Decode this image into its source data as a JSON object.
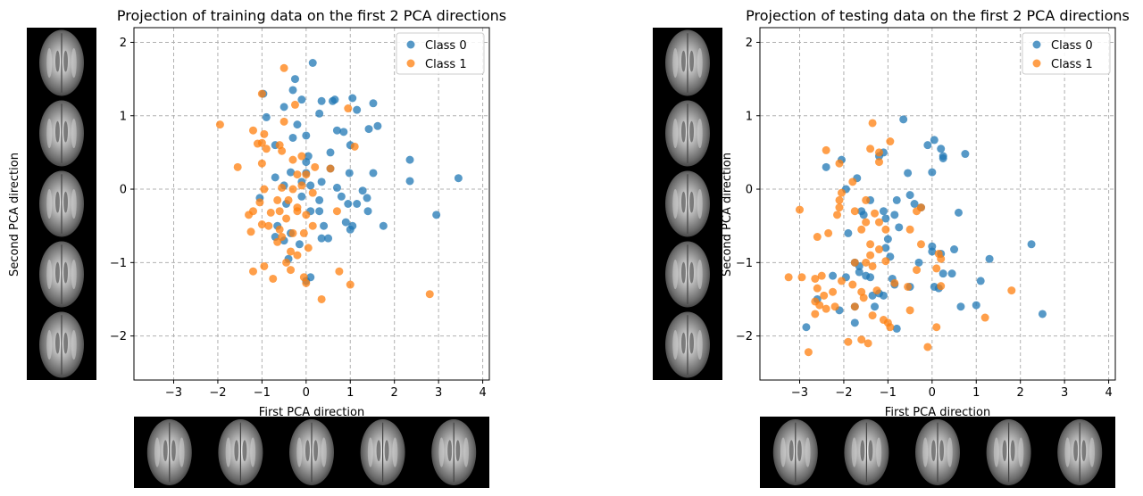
{
  "chart_data": [
    {
      "type": "scatter",
      "title": "Projection of training data on the first 2 PCA directions",
      "xlabel": "First PCA direction",
      "ylabel": "Second PCA direction",
      "xlim": [
        -3.9,
        4.15
      ],
      "ylim": [
        -2.6,
        2.2
      ],
      "xticks": [
        -3,
        -2,
        -1,
        0,
        1,
        2,
        3,
        4
      ],
      "yticks": [
        -2,
        -1,
        0,
        1,
        2
      ],
      "grid": true,
      "legend": "top-right",
      "series": [
        {
          "name": "Class 0",
          "color": "#1f77b4",
          "points": [
            [
              0.15,
              1.72
            ],
            [
              -0.25,
              1.5
            ],
            [
              -0.97,
              1.3
            ],
            [
              -0.5,
              1.12
            ],
            [
              -0.3,
              1.35
            ],
            [
              -0.1,
              1.22
            ],
            [
              0.35,
              1.2
            ],
            [
              0.6,
              1.2
            ],
            [
              0.65,
              1.22
            ],
            [
              1.05,
              1.24
            ],
            [
              1.52,
              1.17
            ],
            [
              1.15,
              1.08
            ],
            [
              0.3,
              1.03
            ],
            [
              -0.9,
              0.98
            ],
            [
              1.62,
              0.86
            ],
            [
              1.42,
              0.82
            ],
            [
              -0.2,
              0.88
            ],
            [
              0.0,
              0.73
            ],
            [
              0.7,
              0.8
            ],
            [
              0.85,
              0.78
            ],
            [
              1.0,
              0.6
            ],
            [
              -0.7,
              0.6
            ],
            [
              -0.3,
              0.7
            ],
            [
              0.55,
              0.5
            ],
            [
              0.05,
              0.45
            ],
            [
              0.0,
              0.37
            ],
            [
              2.35,
              0.4
            ],
            [
              3.45,
              0.15
            ],
            [
              2.35,
              0.11
            ],
            [
              1.52,
              0.22
            ],
            [
              0.98,
              0.22
            ],
            [
              0.55,
              0.28
            ],
            [
              0.0,
              0.22
            ],
            [
              -0.35,
              0.23
            ],
            [
              -0.1,
              0.1
            ],
            [
              -0.5,
              0.05
            ],
            [
              -0.7,
              0.16
            ],
            [
              0.1,
              0.05
            ],
            [
              0.35,
              0.1
            ],
            [
              0.7,
              0.02
            ],
            [
              0.8,
              -0.1
            ],
            [
              1.28,
              -0.02
            ],
            [
              1.38,
              -0.12
            ],
            [
              1.15,
              -0.2
            ],
            [
              0.95,
              -0.2
            ],
            [
              0.3,
              -0.15
            ],
            [
              -0.1,
              -0.1
            ],
            [
              -1.05,
              -0.12
            ],
            [
              -0.45,
              -0.2
            ],
            [
              0.1,
              -0.3
            ],
            [
              0.3,
              -0.3
            ],
            [
              1.4,
              -0.3
            ],
            [
              0.9,
              -0.45
            ],
            [
              2.95,
              -0.35
            ],
            [
              1.75,
              -0.5
            ],
            [
              1.05,
              -0.5
            ],
            [
              -0.65,
              -0.5
            ],
            [
              0.4,
              -0.5
            ],
            [
              1.0,
              -0.55
            ],
            [
              -0.35,
              -0.6
            ],
            [
              -0.5,
              -0.7
            ],
            [
              0.35,
              -0.67
            ],
            [
              0.5,
              -0.67
            ],
            [
              -0.7,
              -0.65
            ],
            [
              -0.4,
              -0.95
            ],
            [
              -0.15,
              -0.75
            ],
            [
              0.1,
              -1.2
            ],
            [
              0.0,
              -1.25
            ]
          ]
        },
        {
          "name": "Class 1",
          "color": "#ff7f0e",
          "points": [
            [
              -0.5,
              1.65
            ],
            [
              -1.0,
              1.3
            ],
            [
              -0.25,
              1.15
            ],
            [
              0.95,
              1.1
            ],
            [
              -1.95,
              0.88
            ],
            [
              -0.5,
              0.92
            ],
            [
              -1.2,
              0.8
            ],
            [
              -0.95,
              0.75
            ],
            [
              -1.0,
              0.63
            ],
            [
              -1.1,
              0.62
            ],
            [
              -0.6,
              0.6
            ],
            [
              -0.9,
              0.55
            ],
            [
              -0.55,
              0.52
            ],
            [
              1.1,
              0.58
            ],
            [
              -0.1,
              0.45
            ],
            [
              -1.0,
              0.35
            ],
            [
              -1.55,
              0.3
            ],
            [
              -0.3,
              0.4
            ],
            [
              0.2,
              0.3
            ],
            [
              0.55,
              0.28
            ],
            [
              0.0,
              0.2
            ],
            [
              -0.2,
              0.2
            ],
            [
              -0.1,
              0.05
            ],
            [
              -0.55,
              0.02
            ],
            [
              -0.3,
              0.0
            ],
            [
              0.15,
              -0.05
            ],
            [
              -0.95,
              0.0
            ],
            [
              -1.05,
              -0.18
            ],
            [
              -0.65,
              -0.15
            ],
            [
              -0.4,
              -0.15
            ],
            [
              -0.2,
              -0.25
            ],
            [
              -0.6,
              -0.3
            ],
            [
              -1.2,
              -0.3
            ],
            [
              -0.8,
              -0.32
            ],
            [
              -1.3,
              -0.35
            ],
            [
              0.7,
              -0.3
            ],
            [
              -0.2,
              -0.3
            ],
            [
              0.0,
              -0.35
            ],
            [
              -0.45,
              -0.4
            ],
            [
              -1.0,
              -0.48
            ],
            [
              -0.85,
              -0.5
            ],
            [
              -0.6,
              -0.55
            ],
            [
              -0.3,
              -0.6
            ],
            [
              -0.05,
              -0.6
            ],
            [
              0.15,
              -0.5
            ],
            [
              -1.25,
              -0.58
            ],
            [
              -0.55,
              -0.65
            ],
            [
              -0.65,
              -0.72
            ],
            [
              -0.35,
              -0.85
            ],
            [
              -0.2,
              -0.9
            ],
            [
              0.05,
              -0.8
            ],
            [
              -0.45,
              -1.0
            ],
            [
              -1.2,
              -1.12
            ],
            [
              -0.95,
              -1.05
            ],
            [
              -0.35,
              -1.1
            ],
            [
              -0.05,
              -1.2
            ],
            [
              -0.75,
              -1.22
            ],
            [
              0.0,
              -1.28
            ],
            [
              0.75,
              -1.12
            ],
            [
              1.0,
              -1.3
            ],
            [
              0.35,
              -1.5
            ],
            [
              2.8,
              -1.43
            ]
          ]
        }
      ]
    },
    {
      "type": "scatter",
      "title": "Projection of testing data on the first 2 PCA directions",
      "xlabel": "First PCA direction",
      "ylabel": "Second PCA direction",
      "xlim": [
        -3.9,
        4.15
      ],
      "ylim": [
        -2.6,
        2.2
      ],
      "xticks": [
        -3,
        -2,
        -1,
        0,
        1,
        2,
        3,
        4
      ],
      "yticks": [
        -2,
        -1,
        0,
        1,
        2
      ],
      "grid": true,
      "legend": "top-right",
      "series": [
        {
          "name": "Class 0",
          "color": "#1f77b4",
          "points": [
            [
              -0.65,
              0.95
            ],
            [
              0.05,
              0.67
            ],
            [
              -0.1,
              0.6
            ],
            [
              0.2,
              0.55
            ],
            [
              0.25,
              0.45
            ],
            [
              0.25,
              0.42
            ],
            [
              0.75,
              0.48
            ],
            [
              -1.1,
              0.5
            ],
            [
              -1.2,
              0.45
            ],
            [
              -2.4,
              0.3
            ],
            [
              -2.05,
              0.4
            ],
            [
              -0.55,
              0.22
            ],
            [
              0.0,
              0.23
            ],
            [
              -1.7,
              0.15
            ],
            [
              -1.95,
              0.0
            ],
            [
              -0.5,
              -0.08
            ],
            [
              -1.4,
              -0.15
            ],
            [
              -0.8,
              -0.15
            ],
            [
              -0.4,
              -0.2
            ],
            [
              -1.6,
              -0.3
            ],
            [
              -1.1,
              -0.3
            ],
            [
              -1.55,
              -0.35
            ],
            [
              -0.25,
              -0.25
            ],
            [
              0.6,
              -0.32
            ],
            [
              -0.85,
              -0.35
            ],
            [
              -1.05,
              -0.4
            ],
            [
              -0.75,
              -0.52
            ],
            [
              -1.9,
              -0.6
            ],
            [
              -1.0,
              -0.68
            ],
            [
              0.0,
              -0.78
            ],
            [
              0.0,
              -0.85
            ],
            [
              -1.05,
              -0.8
            ],
            [
              0.2,
              -0.88
            ],
            [
              2.25,
              -0.75
            ],
            [
              0.5,
              -0.82
            ],
            [
              1.3,
              -0.95
            ],
            [
              -0.95,
              -0.92
            ],
            [
              -1.75,
              -1.0
            ],
            [
              -1.65,
              -1.05
            ],
            [
              -0.9,
              -1.22
            ],
            [
              -0.3,
              -1.0
            ],
            [
              0.25,
              -1.15
            ],
            [
              -1.65,
              -1.13
            ],
            [
              -1.5,
              -1.18
            ],
            [
              -1.95,
              -1.2
            ],
            [
              -1.4,
              -1.2
            ],
            [
              0.45,
              -1.15
            ],
            [
              -2.25,
              -1.18
            ],
            [
              1.1,
              -1.25
            ],
            [
              -1.35,
              -1.45
            ],
            [
              -1.2,
              -1.42
            ],
            [
              -0.85,
              -1.3
            ],
            [
              -0.5,
              -1.33
            ],
            [
              0.05,
              -1.33
            ],
            [
              0.15,
              -1.35
            ],
            [
              -1.1,
              -1.45
            ],
            [
              -2.1,
              -1.65
            ],
            [
              -1.75,
              -1.6
            ],
            [
              -1.3,
              -1.6
            ],
            [
              0.65,
              -1.6
            ],
            [
              1.0,
              -1.58
            ],
            [
              2.5,
              -1.7
            ],
            [
              -1.75,
              -1.82
            ],
            [
              -2.85,
              -1.88
            ],
            [
              -0.8,
              -1.9
            ],
            [
              -2.6,
              -1.5
            ]
          ]
        },
        {
          "name": "Class 1",
          "color": "#ff7f0e",
          "points": [
            [
              -1.35,
              0.9
            ],
            [
              -0.95,
              0.65
            ],
            [
              -1.4,
              0.55
            ],
            [
              -1.2,
              0.5
            ],
            [
              -2.4,
              0.53
            ],
            [
              -2.1,
              0.35
            ],
            [
              -1.2,
              0.37
            ],
            [
              -1.8,
              0.1
            ],
            [
              -2.05,
              -0.05
            ],
            [
              -2.1,
              -0.15
            ],
            [
              -1.5,
              -0.15
            ],
            [
              -2.1,
              -0.25
            ],
            [
              -1.75,
              -0.3
            ],
            [
              -0.25,
              -0.25
            ],
            [
              -0.35,
              -0.3
            ],
            [
              -3.0,
              -0.28
            ],
            [
              -2.15,
              -0.35
            ],
            [
              -1.3,
              -0.33
            ],
            [
              -1.5,
              -0.45
            ],
            [
              -1.6,
              -0.55
            ],
            [
              -1.2,
              -0.45
            ],
            [
              -1.05,
              -0.55
            ],
            [
              -0.5,
              -0.55
            ],
            [
              -2.6,
              -0.65
            ],
            [
              -2.35,
              -0.6
            ],
            [
              -1.4,
              -0.75
            ],
            [
              -1.4,
              -0.9
            ],
            [
              -1.05,
              -0.98
            ],
            [
              -1.2,
              -0.82
            ],
            [
              -0.25,
              -0.75
            ],
            [
              0.15,
              -0.88
            ],
            [
              0.2,
              -0.95
            ],
            [
              -1.75,
              -1.0
            ],
            [
              -1.5,
              -1.0
            ],
            [
              -1.35,
              -1.05
            ],
            [
              -0.35,
              -1.1
            ],
            [
              0.1,
              -1.08
            ],
            [
              -3.25,
              -1.2
            ],
            [
              -2.95,
              -1.2
            ],
            [
              -2.65,
              -1.22
            ],
            [
              -2.5,
              -1.18
            ],
            [
              -2.05,
              -1.25
            ],
            [
              -1.25,
              -1.38
            ],
            [
              -1.8,
              -1.3
            ],
            [
              -0.85,
              -1.28
            ],
            [
              -0.55,
              -1.33
            ],
            [
              0.2,
              -1.32
            ],
            [
              -2.6,
              -1.35
            ],
            [
              -2.45,
              -1.45
            ],
            [
              -2.25,
              -1.4
            ],
            [
              -1.6,
              -1.4
            ],
            [
              -1.55,
              -1.48
            ],
            [
              1.8,
              -1.38
            ],
            [
              -2.65,
              -1.53
            ],
            [
              -2.55,
              -1.58
            ],
            [
              -2.4,
              -1.63
            ],
            [
              -2.2,
              -1.6
            ],
            [
              -1.75,
              -1.6
            ],
            [
              -2.65,
              -1.7
            ],
            [
              -1.35,
              -1.72
            ],
            [
              -1.1,
              -1.78
            ],
            [
              -1.0,
              -1.82
            ],
            [
              -0.95,
              -1.88
            ],
            [
              1.2,
              -1.75
            ],
            [
              -0.5,
              -1.65
            ],
            [
              -1.9,
              -2.08
            ],
            [
              -1.6,
              -2.05
            ],
            [
              -1.45,
              -2.1
            ],
            [
              -0.1,
              -2.15
            ],
            [
              -2.8,
              -2.22
            ],
            [
              0.1,
              -1.88
            ]
          ]
        }
      ]
    }
  ]
}
